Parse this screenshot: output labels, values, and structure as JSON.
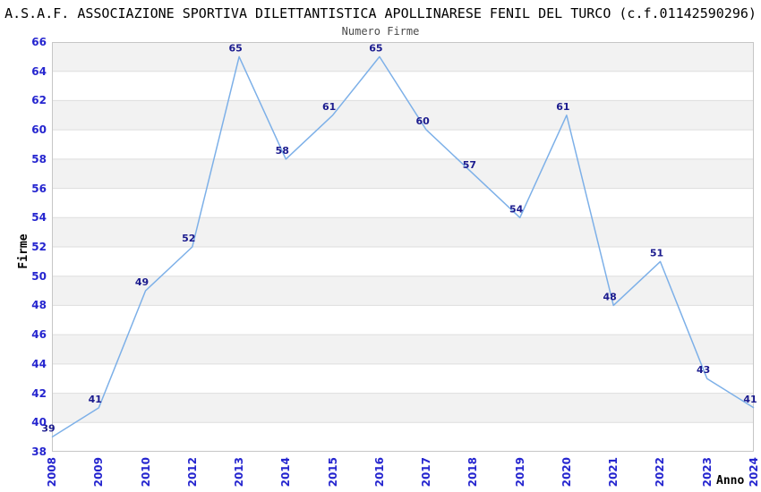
{
  "chart_data": {
    "type": "line",
    "title": "A.S.A.F. ASSOCIAZIONE SPORTIVA DILETTANTISTICA APOLLINARESE FENIL DEL TURCO (c.f.01142590296)",
    "subtitle": "Numero Firme",
    "xlabel": "Anno",
    "ylabel": "Firme",
    "categories": [
      "2008",
      "2009",
      "2010",
      "2012",
      "2013",
      "2014",
      "2015",
      "2016",
      "2017",
      "2018",
      "2019",
      "2020",
      "2021",
      "2022",
      "2023",
      "2024"
    ],
    "values": [
      39,
      41,
      49,
      52,
      65,
      58,
      61,
      65,
      60,
      57,
      54,
      61,
      48,
      51,
      43,
      41
    ],
    "point_labels": [
      "39",
      "41",
      "49",
      "52",
      "65",
      "58",
      "61",
      "65",
      "60",
      "57",
      "54",
      "61",
      "48",
      "51",
      "43",
      "41"
    ],
    "ylim": [
      38,
      66
    ],
    "ytick_step": 2,
    "ytick_labels": [
      "38",
      "40",
      "42",
      "44",
      "46",
      "48",
      "50",
      "52",
      "54",
      "56",
      "58",
      "60",
      "62",
      "64",
      "66"
    ],
    "grid": true,
    "legend": "none",
    "band_style": "alternating horizontal bands every 2 units, gray bands at 40-42 through 64-66",
    "colors": {
      "line": "#7db0e8",
      "point_label": "#1b1b8e",
      "tick_label": "#2525cf",
      "band": "#f2f2f2",
      "gridline": "#dedede",
      "plot_border": "#c6c6c6",
      "title": "#000000",
      "subtitle": "#4a4a4a",
      "background": "#ffffff"
    }
  }
}
